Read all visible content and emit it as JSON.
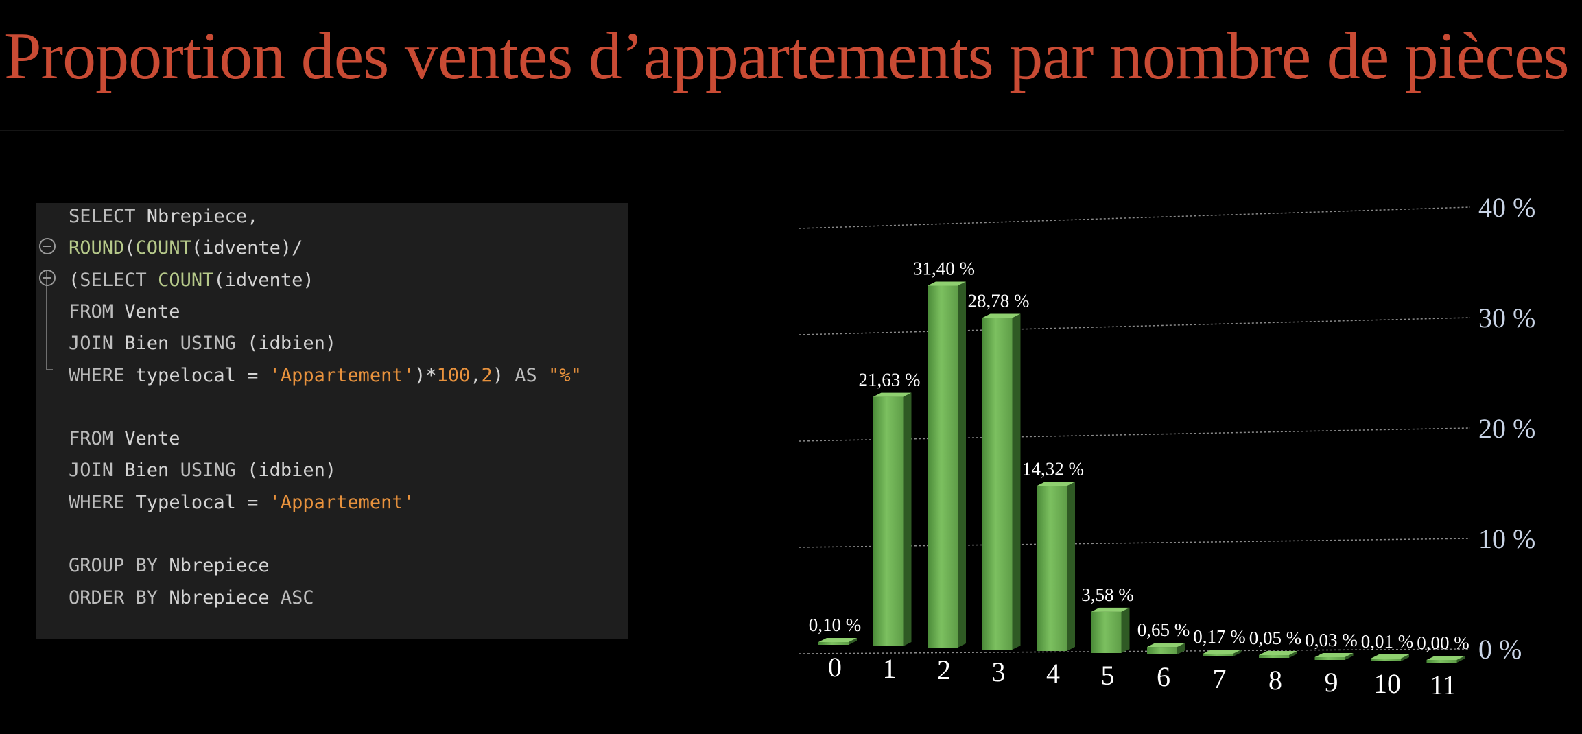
{
  "title": "Proportion des ventes d’appartements par nombre de pièces",
  "code": [
    [
      {
        "t": "SELECT ",
        "c": "kw"
      },
      {
        "t": "Nbrepiece,",
        "c": ""
      }
    ],
    [
      {
        "t": "ROUND",
        "c": "fn"
      },
      {
        "t": "(",
        "c": ""
      },
      {
        "t": "COUNT",
        "c": "fn"
      },
      {
        "t": "(idvente)/",
        "c": ""
      }
    ],
    [
      {
        "t": "(",
        "c": ""
      },
      {
        "t": "SELECT ",
        "c": "kw"
      },
      {
        "t": "COUNT",
        "c": "fn"
      },
      {
        "t": "(idvente)",
        "c": ""
      }
    ],
    [
      {
        "t": "FROM ",
        "c": "kw"
      },
      {
        "t": "Vente",
        "c": ""
      }
    ],
    [
      {
        "t": "JOIN ",
        "c": "kw"
      },
      {
        "t": "Bien ",
        "c": ""
      },
      {
        "t": "USING ",
        "c": "kw"
      },
      {
        "t": "(idbien)",
        "c": ""
      }
    ],
    [
      {
        "t": "WHERE ",
        "c": "kw"
      },
      {
        "t": "typelocal = ",
        "c": ""
      },
      {
        "t": "'Appartement'",
        "c": "str"
      },
      {
        "t": ")*",
        "c": ""
      },
      {
        "t": "100",
        "c": "num"
      },
      {
        "t": ",",
        "c": ""
      },
      {
        "t": "2",
        "c": "num"
      },
      {
        "t": ") ",
        "c": ""
      },
      {
        "t": "AS ",
        "c": "kw"
      },
      {
        "t": "\"%\"",
        "c": "str"
      }
    ],
    [],
    [
      {
        "t": "FROM ",
        "c": "kw"
      },
      {
        "t": "Vente",
        "c": ""
      }
    ],
    [
      {
        "t": "JOIN ",
        "c": "kw"
      },
      {
        "t": "Bien ",
        "c": ""
      },
      {
        "t": "USING ",
        "c": "kw"
      },
      {
        "t": "(idbien)",
        "c": ""
      }
    ],
    [
      {
        "t": "WHERE ",
        "c": "kw"
      },
      {
        "t": "Typelocal = ",
        "c": ""
      },
      {
        "t": "'Appartement'",
        "c": "str"
      }
    ],
    [],
    [
      {
        "t": "GROUP BY ",
        "c": "kw"
      },
      {
        "t": "Nbrepiece",
        "c": ""
      }
    ],
    [
      {
        "t": "ORDER BY ",
        "c": "kw"
      },
      {
        "t": "Nbrepiece ",
        "c": ""
      },
      {
        "t": "ASC",
        "c": "kw"
      }
    ]
  ],
  "chart_data": {
    "type": "bar",
    "title": "",
    "xlabel": "",
    "ylabel": "",
    "categories": [
      "0",
      "1",
      "2",
      "3",
      "4",
      "5",
      "6",
      "7",
      "8",
      "9",
      "10",
      "11"
    ],
    "values": [
      0.1,
      21.63,
      31.4,
      28.78,
      14.32,
      3.58,
      0.65,
      0.17,
      0.05,
      0.03,
      0.01,
      0.0
    ],
    "data_labels": [
      "0,10 %",
      "21,63 %",
      "31,40 %",
      "28,78 %",
      "14,32 %",
      "3,58 %",
      "0,65 %",
      "0,17 %",
      "0,05 %",
      "0,03 %",
      "0,01 %",
      "0,00 %"
    ],
    "ylim": [
      0,
      40
    ],
    "yticks": [
      0,
      10,
      20,
      30,
      40
    ],
    "ytick_labels": [
      "0 %",
      "10 %",
      "20 %",
      "30 %",
      "40 %"
    ],
    "grid": true,
    "bar_color": "#6cab52"
  }
}
